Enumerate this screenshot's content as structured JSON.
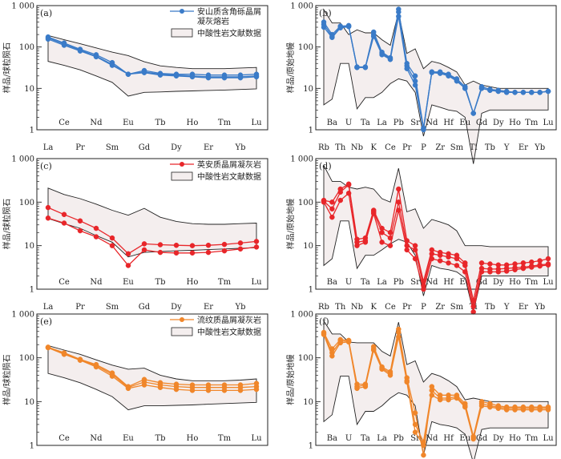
{
  "page": {
    "background": "#ffffff"
  },
  "colors": {
    "blue": "#3a7bc8",
    "red": "#e8262a",
    "orange": "#f0862a",
    "field_fill": "#f4eeee",
    "field_stroke": "#222222"
  },
  "common": {
    "ylabel_ree": "样品/球粒陨石",
    "ylabel_spider": "样品/原始地幔",
    "field_label": "中酸性岩文献数据",
    "y_ticks": [
      1,
      10,
      100,
      1000
    ],
    "y_tick_labels": [
      "1",
      "10",
      "100",
      "1 000"
    ],
    "ylim": [
      1,
      1000
    ],
    "y_scale": "log",
    "ree_elements": [
      "La",
      "Ce",
      "Pr",
      "Nd",
      "Sm",
      "Eu",
      "Gd",
      "Tb",
      "Dy",
      "Ho",
      "Er",
      "Tm",
      "Yb",
      "Lu"
    ],
    "spider_elements": [
      "Rb",
      "Ba",
      "Th",
      "U",
      "Nb",
      "Ta",
      "K",
      "La",
      "Ce",
      "Pb",
      "Pr",
      "Sr",
      "P",
      "Nd",
      "Zr",
      "Hf",
      "Sm",
      "Eu",
      "Ti",
      "Gd",
      "Tb",
      "Dy",
      "Y",
      "Ho",
      "Er",
      "Tm",
      "Yb",
      "Lu"
    ]
  },
  "chart_data": [
    {
      "panel": "(a)",
      "type": "line",
      "kind": "ree",
      "color": "blue",
      "legend_lines": [
        "安山质含角砾晶屑",
        "凝灰熔岩"
      ],
      "field_upper": [
        190,
        150,
        120,
        95,
        75,
        62,
        44,
        35,
        32,
        30,
        30,
        30,
        31,
        32
      ],
      "field_lower": [
        45,
        36,
        28,
        20,
        14,
        6.5,
        8,
        8.2,
        8.5,
        8.7,
        8.9,
        9.1,
        9.4,
        9.7
      ],
      "series": [
        [
          175,
          125,
          88,
          65,
          42,
          22,
          27,
          23,
          22,
          22,
          21,
          21,
          21,
          22
        ],
        [
          165,
          118,
          84,
          60,
          38,
          22,
          25,
          22,
          21,
          20,
          19,
          19,
          19,
          20
        ],
        [
          155,
          110,
          80,
          58,
          36,
          22,
          24,
          21,
          20,
          19,
          18,
          18,
          18,
          19
        ]
      ]
    },
    {
      "panel": "(b)",
      "type": "line",
      "kind": "spider",
      "color": "blue",
      "field_upper": [
        800,
        380,
        380,
        200,
        260,
        220,
        220,
        150,
        110,
        700,
        70,
        90,
        30,
        45,
        40,
        32,
        25,
        12,
        15,
        12,
        11,
        10,
        10,
        10,
        10,
        10,
        10,
        10
      ],
      "field_lower": [
        4,
        5.5,
        40,
        40,
        3.2,
        6,
        6,
        8,
        13,
        17,
        15,
        8,
        0.7,
        4,
        3.5,
        3,
        2.8,
        2,
        0.15,
        2.5,
        3,
        3,
        3,
        3,
        3,
        3,
        3,
        3
      ],
      "series": [
        [
          400,
          200,
          320,
          330,
          33,
          33,
          230,
          75,
          55,
          820,
          40,
          20,
          1.1,
          25,
          25,
          22,
          17,
          11,
          2.5,
          11,
          9.5,
          9,
          8.5,
          8,
          8,
          8,
          8,
          8.5
        ],
        [
          350,
          180,
          300,
          320,
          32,
          32,
          200,
          70,
          52,
          700,
          35,
          15,
          1.05,
          25,
          24,
          21,
          16,
          10,
          2.5,
          10,
          9,
          8.5,
          8,
          8,
          8,
          8,
          8,
          8.5
        ],
        [
          300,
          170,
          290,
          310,
          32,
          32,
          180,
          65,
          50,
          550,
          30,
          12,
          1.0,
          24,
          23,
          20,
          15,
          10,
          2.5,
          10,
          9,
          8.5,
          8,
          8,
          8,
          8,
          8,
          8.5
        ]
      ]
    },
    {
      "panel": "(c)",
      "type": "line",
      "kind": "ree",
      "color": "red",
      "legend_lines": [
        "英安质晶屑凝灰岩"
      ],
      "field_upper": [
        210,
        150,
        120,
        90,
        65,
        50,
        72,
        45,
        36,
        32,
        31,
        31,
        32,
        33
      ],
      "field_lower": [
        42,
        32,
        25,
        17,
        12,
        5.5,
        7,
        7.3,
        7.6,
        7.8,
        8.1,
        8.4,
        8.7,
        9
      ],
      "series": [
        [
          75,
          52,
          37,
          25,
          15,
          6.5,
          11,
          10.5,
          10.2,
          10,
          10.2,
          10.7,
          11.5,
          12.5
        ],
        [
          43,
          33,
          22,
          16,
          10,
          3.5,
          8,
          7,
          6.8,
          6.8,
          7,
          7.6,
          8.4,
          9.3
        ]
      ]
    },
    {
      "panel": "(d)",
      "type": "line",
      "kind": "spider",
      "color": "red",
      "field_upper": [
        700,
        300,
        300,
        220,
        200,
        220,
        200,
        120,
        100,
        600,
        60,
        70,
        25,
        40,
        35,
        30,
        22,
        10,
        10,
        10,
        9.5,
        9.5,
        9.5,
        9.5,
        9.5,
        9.5,
        9.5,
        9.5
      ],
      "field_lower": [
        3.5,
        5,
        37,
        37,
        3,
        6,
        6,
        8,
        11,
        14,
        12,
        6,
        0.7,
        3.5,
        3,
        2.8,
        2.5,
        1.8,
        0.3,
        2,
        2,
        2,
        2,
        2,
        2,
        2,
        2,
        2
      ],
      "series": [
        [
          110,
          100,
          200,
          260,
          14,
          15,
          65,
          25,
          20,
          200,
          13,
          10,
          1.5,
          8,
          7,
          6.5,
          6,
          4,
          0.55,
          4,
          3.8,
          3.6,
          3.6,
          3.8,
          4,
          4.2,
          4.5,
          5
        ],
        [
          105,
          70,
          170,
          250,
          12,
          13,
          60,
          20,
          15,
          100,
          10,
          8,
          1.2,
          6.5,
          6,
          5.5,
          5,
          3.5,
          0.4,
          3,
          2.9,
          2.9,
          3,
          3.1,
          3.2,
          3.4,
          3.6,
          3.8
        ],
        [
          100,
          45,
          110,
          160,
          10,
          12,
          55,
          12,
          10,
          65,
          8,
          5,
          1.0,
          5,
          4.5,
          4,
          3.5,
          2.5,
          0.3,
          2.5,
          2.5,
          2.5,
          2.6,
          2.8,
          3,
          3.2,
          3.4,
          3.6
        ]
      ]
    },
    {
      "panel": "(e)",
      "type": "line",
      "kind": "ree",
      "color": "orange",
      "legend_lines": [
        "流纹质晶屑凝灰岩"
      ],
      "field_upper": [
        190,
        150,
        120,
        90,
        68,
        55,
        58,
        40,
        33,
        30,
        30,
        30,
        31,
        33
      ],
      "field_lower": [
        44,
        35,
        27,
        19,
        13,
        6.5,
        8,
        8,
        8.2,
        8.4,
        8.7,
        9,
        9.3,
        9.6
      ],
      "series": [
        [
          175,
          130,
          92,
          70,
          45,
          22,
          32,
          27,
          25,
          24,
          24,
          24,
          24,
          26
        ],
        [
          172,
          125,
          90,
          66,
          42,
          21,
          28,
          24,
          22,
          21,
          21,
          21,
          21,
          22
        ],
        [
          170,
          120,
          88,
          62,
          38,
          20,
          24,
          21,
          19,
          18,
          18,
          18,
          18,
          19
        ]
      ]
    },
    {
      "panel": "(f)",
      "type": "line",
      "kind": "spider",
      "color": "orange",
      "field_upper": [
        700,
        350,
        350,
        230,
        220,
        220,
        220,
        140,
        110,
        650,
        70,
        85,
        28,
        44,
        38,
        30,
        22,
        11,
        12,
        11,
        10,
        10,
        10,
        10,
        10,
        10,
        10,
        10
      ],
      "field_lower": [
        3.5,
        5,
        38,
        38,
        3,
        6,
        6,
        8,
        12,
        16,
        14,
        8,
        0.6,
        3.5,
        3,
        2.8,
        2.5,
        1.8,
        0.4,
        2.3,
        2.5,
        2.5,
        2.5,
        2.5,
        2.5,
        2.5,
        2.5,
        2.5
      ],
      "series": [
        [
          380,
          160,
          260,
          250,
          25,
          25,
          180,
          62,
          48,
          450,
          35,
          5.5,
          0.6,
          22,
          14,
          14,
          14,
          9,
          1.6,
          10,
          9,
          8,
          7.5,
          7.5,
          7.5,
          7.5,
          7.5,
          7.5
        ],
        [
          360,
          130,
          240,
          240,
          22,
          24,
          160,
          58,
          44,
          380,
          30,
          3,
          1.2,
          18,
          12,
          12,
          13,
          8,
          1.5,
          9,
          8,
          7.5,
          7,
          7,
          7,
          7,
          7,
          7
        ],
        [
          340,
          110,
          220,
          230,
          20,
          22,
          150,
          55,
          40,
          300,
          28,
          2,
          1.0,
          14,
          11,
          11,
          12,
          7.5,
          1.4,
          8,
          7.5,
          7,
          6.5,
          6.5,
          6.5,
          6.5,
          6.5,
          6.5
        ]
      ]
    }
  ]
}
